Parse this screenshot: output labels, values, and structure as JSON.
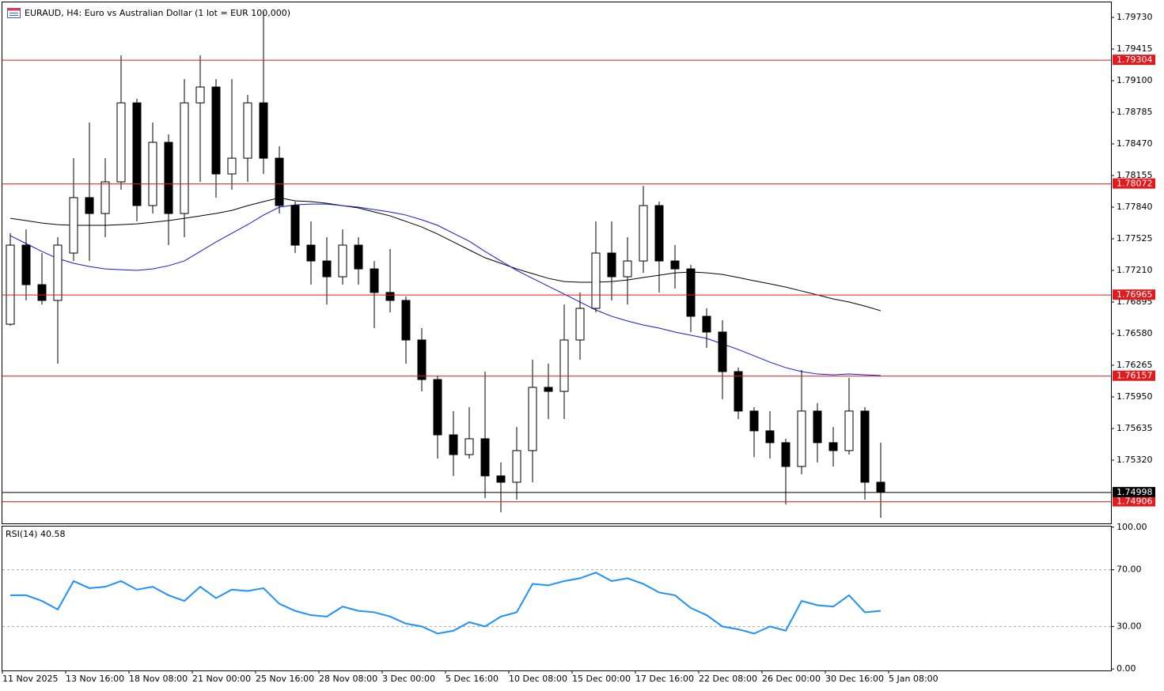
{
  "chart_data": [
    {
      "type": "candlestick",
      "title": "EURAUD, H4:  Euro vs Australian Dollar (1 lot = EUR 100,000)",
      "ylim": [
        1.7469,
        1.7988
      ],
      "yticks": [
        {
          "value": 1.7973,
          "label": "1.79730"
        },
        1.79415,
        {
          "value": 1.791,
          "label": "1.79100"
        },
        1.78785,
        {
          "value": 1.7847,
          "label": "1.78470"
        },
        1.78155,
        {
          "value": 1.7784,
          "label": "1.77840"
        },
        1.77525,
        {
          "value": 1.7721,
          "label": "1.77210"
        },
        1.76895,
        {
          "value": 1.7658,
          "label": "1.76580"
        },
        1.76265,
        {
          "value": 1.7595,
          "label": "1.75950"
        },
        1.75635,
        {
          "value": 1.7532,
          "label": "1.75320"
        }
      ],
      "time_labels": [
        "11 Nov 2025",
        "13 Nov 16:00",
        "18 Nov 08:00",
        "21 Nov 00:00",
        "25 Nov 16:00",
        "28 Nov 08:00",
        "3 Dec 00:00",
        "5 Dec 16:00",
        "10 Dec 08:00",
        "15 Dec 00:00",
        "17 Dec 16:00",
        "22 Dec 08:00",
        "26 Dec 00:00",
        "30 Dec 16:00",
        "5 Jan 08:00"
      ],
      "open": [
        1.76674,
        1.77462,
        1.77068,
        1.76911,
        1.77383,
        1.77935,
        1.77777,
        1.78092,
        1.78879,
        1.77856,
        1.78486,
        1.77777,
        1.78879,
        1.79037,
        1.78171,
        1.78328,
        1.78879,
        1.78328,
        1.77856,
        1.77462,
        1.77304,
        1.77147,
        1.77462,
        1.77225,
        1.7699,
        1.76911,
        1.76517,
        1.76123,
        1.75572,
        1.75375,
        1.75533,
        1.75163,
        1.751,
        1.75415,
        1.76045,
        1.76005,
        1.76517,
        1.76832,
        1.77383,
        1.77147,
        1.77304,
        1.77856,
        1.77304,
        1.77225,
        1.76753,
        1.76596,
        1.76202,
        1.75809,
        1.75612,
        1.75494,
        1.75257,
        1.75809,
        1.75494,
        1.75415,
        1.75809,
        1.751
      ],
      "high": [
        1.7758,
        1.77619,
        1.77383,
        1.77541,
        1.78328,
        1.78683,
        1.78328,
        1.79352,
        1.78919,
        1.78683,
        1.78565,
        1.79116,
        1.79352,
        1.79116,
        1.79116,
        1.78958,
        1.79785,
        1.78446,
        1.77895,
        1.77698,
        1.77541,
        1.77619,
        1.77541,
        1.77304,
        1.77423,
        1.7695,
        1.76635,
        1.76163,
        1.75809,
        1.75848,
        1.76202,
        1.75297,
        1.75651,
        1.7632,
        1.76281,
        1.76871,
        1.7699,
        1.77698,
        1.77698,
        1.77541,
        1.78052,
        1.77895,
        1.77462,
        1.77265,
        1.76832,
        1.76714,
        1.76242,
        1.75848,
        1.75809,
        1.75533,
        1.76218,
        1.75888,
        1.75651,
        1.76139,
        1.75848,
        1.75494
      ],
      "low": [
        1.76658,
        1.76911,
        1.76871,
        1.76281,
        1.77304,
        1.77304,
        1.77541,
        1.78013,
        1.77698,
        1.77777,
        1.77462,
        1.77541,
        1.78092,
        1.77935,
        1.78013,
        1.78092,
        1.78171,
        1.77777,
        1.77383,
        1.77068,
        1.76871,
        1.77068,
        1.77068,
        1.76635,
        1.76793,
        1.76281,
        1.76005,
        1.75336,
        1.75163,
        1.75336,
        1.74942,
        1.748,
        1.74926,
        1.751,
        1.7573,
        1.7573,
        1.7632,
        1.76793,
        1.76911,
        1.76871,
        1.77186,
        1.7699,
        1.77029,
        1.76596,
        1.76438,
        1.75927,
        1.7573,
        1.75351,
        1.75336,
        1.74879,
        1.75178,
        1.75297,
        1.75257,
        1.75375,
        1.74926,
        1.74745
      ],
      "close": [
        1.77462,
        1.77068,
        1.76911,
        1.77462,
        1.77935,
        1.77777,
        1.78092,
        1.78879,
        1.77856,
        1.78486,
        1.77777,
        1.78879,
        1.79037,
        1.78171,
        1.78328,
        1.78879,
        1.78328,
        1.77856,
        1.77462,
        1.77304,
        1.77147,
        1.77462,
        1.77225,
        1.7699,
        1.76911,
        1.76517,
        1.76123,
        1.75572,
        1.75375,
        1.75533,
        1.75163,
        1.751,
        1.75415,
        1.76045,
        1.76005,
        1.76517,
        1.76832,
        1.77383,
        1.77147,
        1.77304,
        1.77856,
        1.77304,
        1.77225,
        1.76753,
        1.76596,
        1.76202,
        1.75809,
        1.75612,
        1.75494,
        1.75257,
        1.75809,
        1.75494,
        1.75415,
        1.75809,
        1.751,
        1.75005
      ],
      "series": [
        {
          "color": "#000000",
          "values": [
            1.77729,
            1.77706,
            1.77682,
            1.77666,
            1.77659,
            1.77659,
            1.77659,
            1.77666,
            1.77674,
            1.7769,
            1.77706,
            1.77729,
            1.77753,
            1.77777,
            1.77808,
            1.77855,
            1.77895,
            1.77934,
            1.77903,
            1.77895,
            1.77879,
            1.77855,
            1.77832,
            1.77792,
            1.77753,
            1.77698,
            1.77643,
            1.77572,
            1.77493,
            1.77414,
            1.77336,
            1.77281,
            1.77225,
            1.77178,
            1.77131,
            1.77099,
            1.77092,
            1.77092,
            1.77099,
            1.77115,
            1.77139,
            1.77162,
            1.77186,
            1.77194,
            1.77186,
            1.7717,
            1.77139,
            1.77107,
            1.77076,
            1.77044,
            1.77005,
            1.76966,
            1.76926,
            1.76895,
            1.76855,
            1.76808
          ]
        },
        {
          "color": "#1515e0",
          "values": [
            1.77556,
            1.77477,
            1.77399,
            1.77328,
            1.77281,
            1.77249,
            1.77225,
            1.77217,
            1.7721,
            1.77225,
            1.77257,
            1.77304,
            1.77399,
            1.77493,
            1.7758,
            1.77666,
            1.77761,
            1.7784,
            1.77863,
            1.77871,
            1.77871,
            1.77855,
            1.7784,
            1.77816,
            1.77792,
            1.77761,
            1.77714,
            1.77659,
            1.7758,
            1.77501,
            1.77399,
            1.77304,
            1.7721,
            1.77131,
            1.77052,
            1.76974,
            1.76895,
            1.76816,
            1.76753,
            1.76706,
            1.76666,
            1.76635,
            1.76596,
            1.76564,
            1.76533,
            1.76478,
            1.76422,
            1.76359,
            1.76296,
            1.76241,
            1.76202,
            1.76178,
            1.7617,
            1.76178,
            1.7617,
            1.76163
          ]
        }
      ],
      "levels": [
        1.79304,
        1.78072,
        1.76965,
        1.76157,
        1.74906
      ],
      "level_color": "#e31a1c",
      "last_price": 1.74998
    },
    {
      "type": "line",
      "title": "RSI(14)",
      "last_value": 40.58,
      "ylim": [
        -1,
        101
      ],
      "yticks": [
        {
          "value": 100,
          "label": "100.00"
        },
        {
          "value": 70,
          "label": "70.00"
        },
        {
          "value": 30,
          "label": "30.00"
        },
        {
          "value": 0,
          "label": "0.00"
        }
      ],
      "levels": [
        70,
        30
      ],
      "series": [
        {
          "color": "#1e90ff",
          "values": [
            52,
            52,
            48,
            42,
            62,
            57,
            58,
            62,
            56,
            58,
            52,
            48,
            58,
            50,
            56,
            55,
            57,
            46,
            41,
            38,
            37,
            44,
            41,
            40,
            37,
            32,
            30,
            25,
            27,
            33,
            30,
            37,
            40,
            60,
            59,
            62,
            64,
            68,
            62,
            64,
            60,
            54,
            52,
            43,
            38,
            30,
            28,
            25,
            30,
            27,
            48,
            45,
            44,
            52,
            40,
            41
          ]
        }
      ]
    }
  ]
}
